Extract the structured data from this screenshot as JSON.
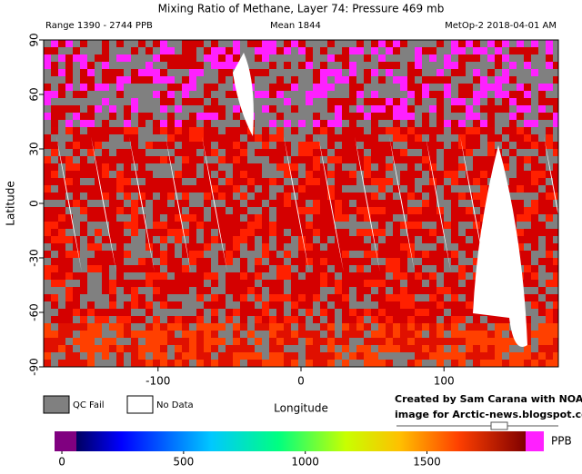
{
  "title": "Mixing Ratio of Methane, Layer 74: Pressure 469 mb",
  "range_text": "Range 1390 - 2744 PPB",
  "mean_text": "Mean 1844",
  "source_text": "MetOp-2 2018-04-01 AM",
  "map": {
    "xlabel": "Longitude",
    "ylabel": "Latitude",
    "xlim": [
      -180,
      180
    ],
    "ylim": [
      -90,
      90
    ],
    "xticks": [
      -100,
      0,
      100
    ],
    "yticks": [
      -90,
      -60,
      -30,
      0,
      30,
      60,
      90
    ]
  },
  "legend": {
    "qc_fail": "QC Fail",
    "no_data": "No Data"
  },
  "credit": [
    "Created by Sam Carana with NOAA",
    "image for Arctic-news.blogspot.com"
  ],
  "colorbar": {
    "unit": "PPB",
    "lim": [
      -30,
      1980
    ],
    "ticks": [
      0,
      500,
      1000,
      1500
    ]
  }
}
